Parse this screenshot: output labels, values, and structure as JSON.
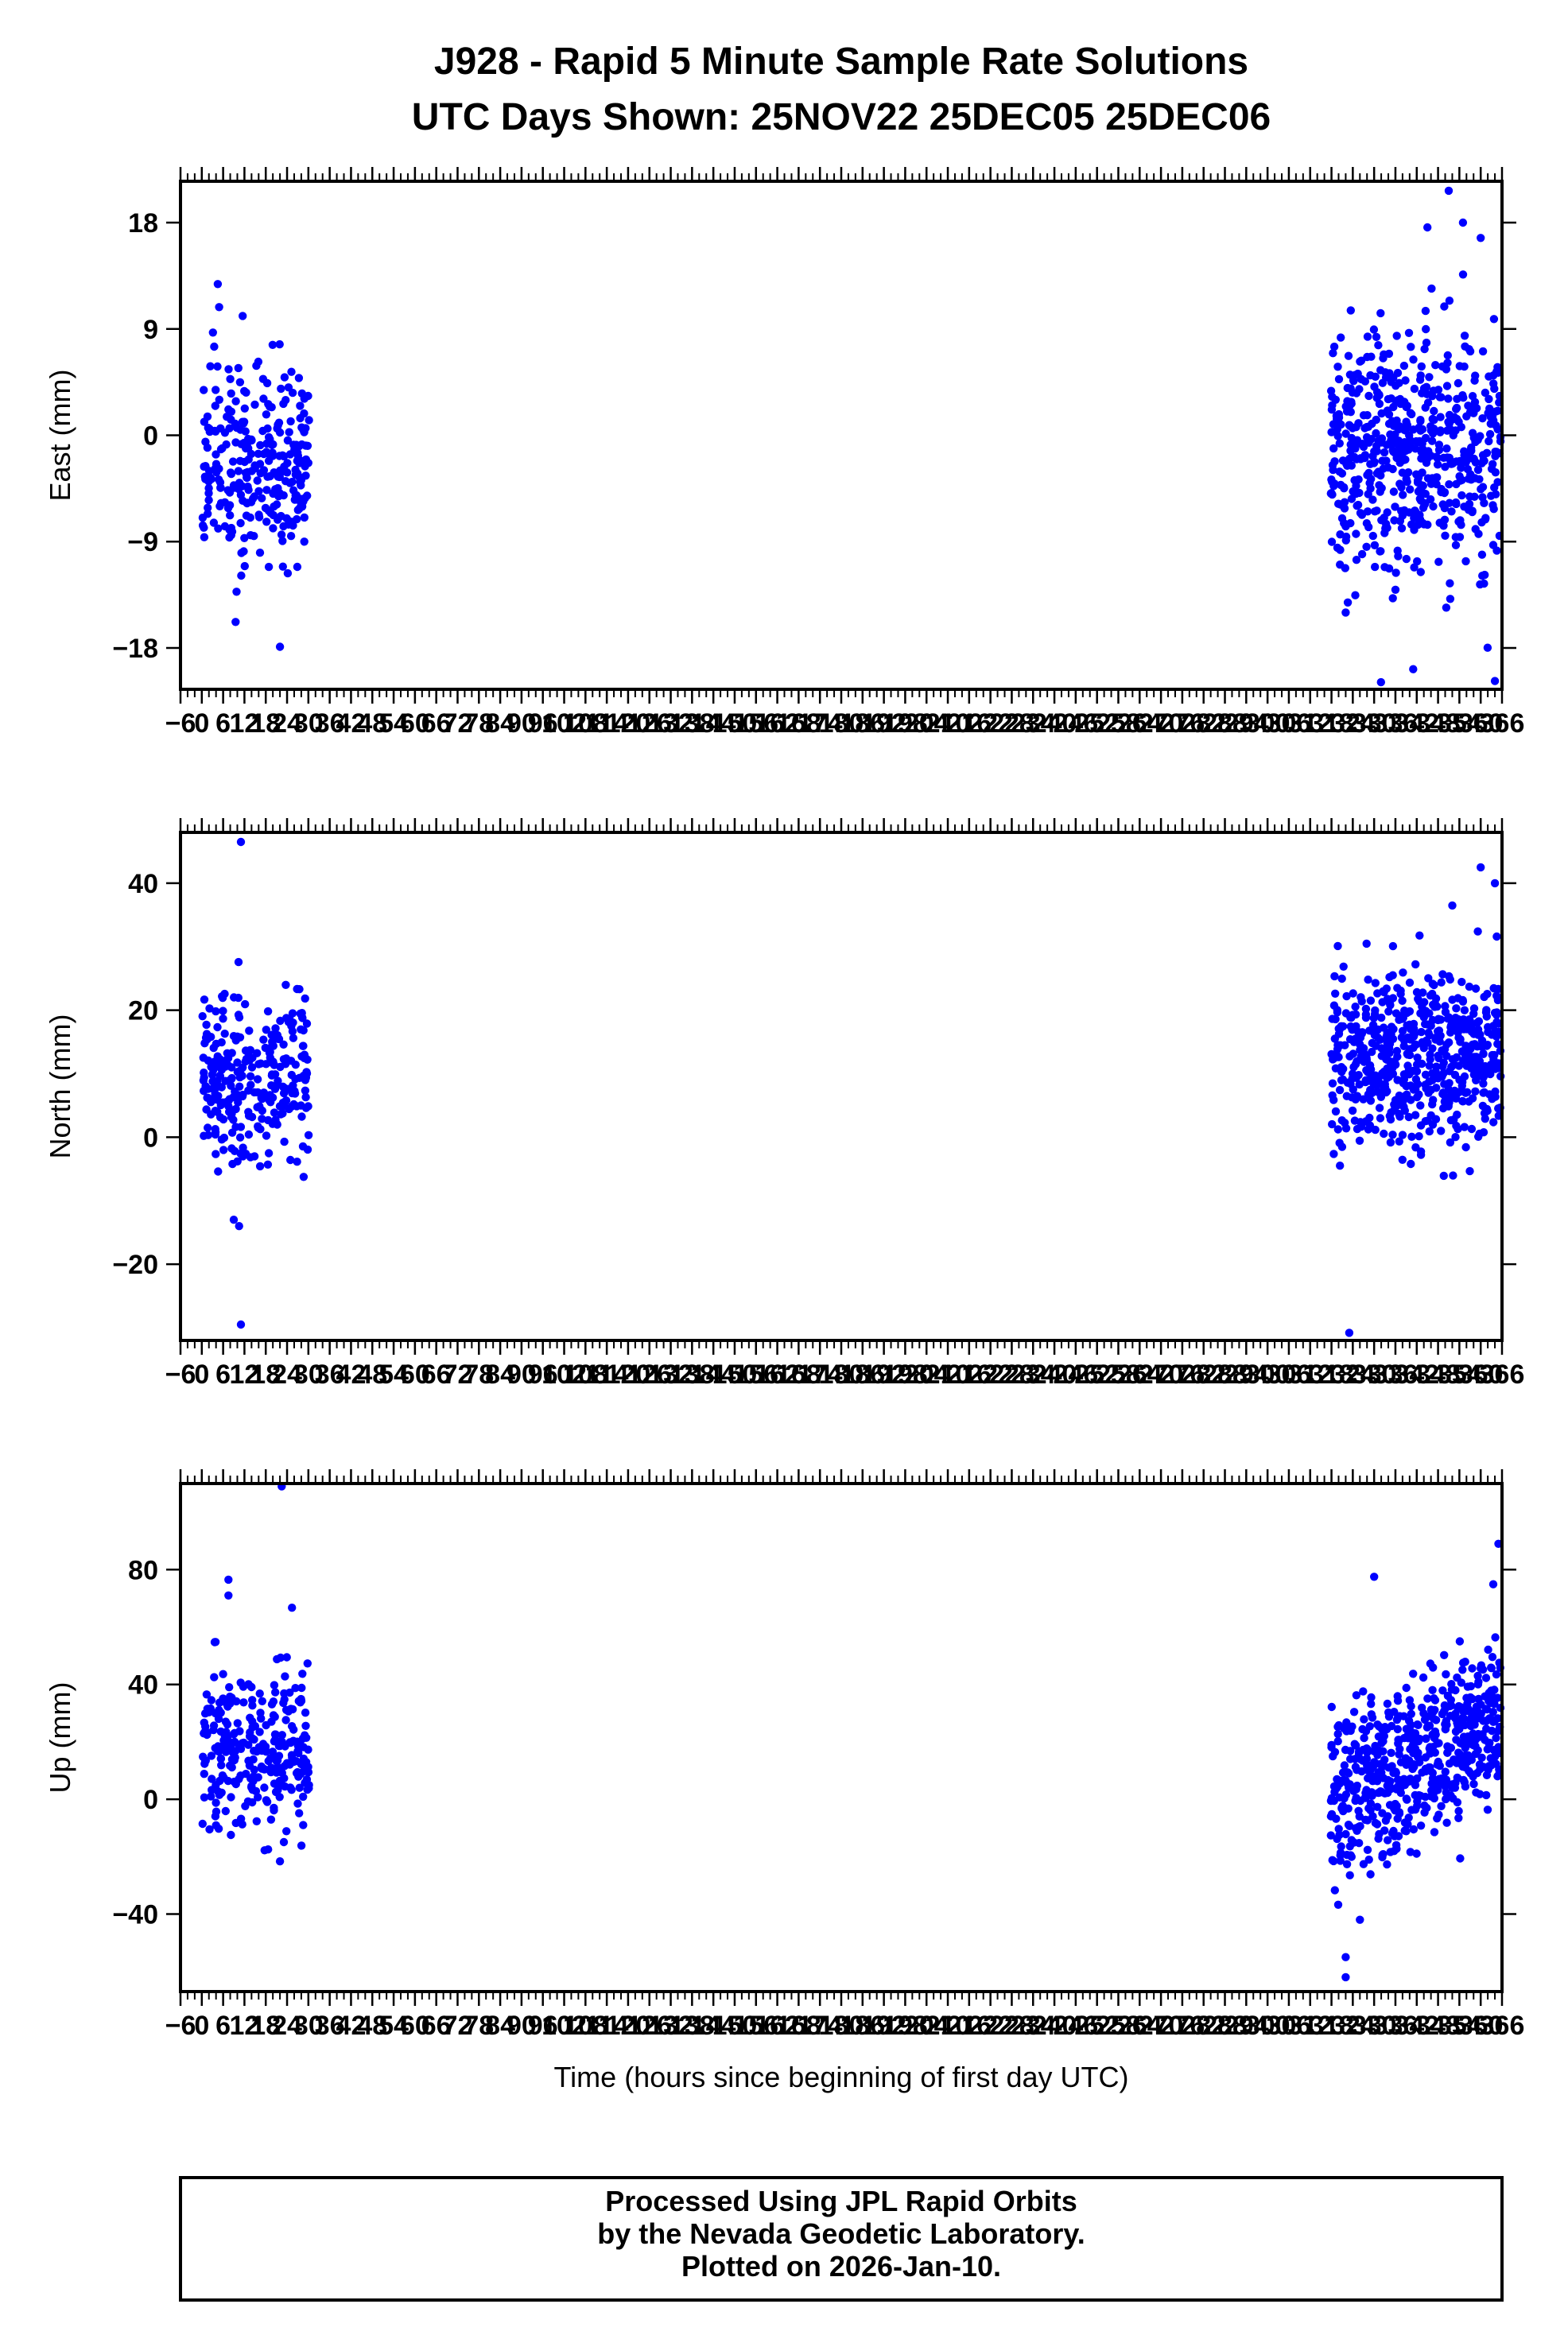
{
  "title_line1": "J928 - Rapid 5 Minute Sample Rate Solutions",
  "title_line2": "UTC Days Shown:  25NOV22 25DEC05 25DEC06",
  "footer": {
    "line1": "Processed Using JPL Rapid Orbits",
    "line2": "by the Nevada Geodetic Laboratory.",
    "line3": "Plotted on 2026-Jan-10."
  },
  "colors": {
    "points": "#0000ff",
    "axes": "#000000",
    "background": "#ffffff"
  },
  "chart_data": [
    {
      "type": "scatter",
      "ylabel": "East (mm)",
      "xlabel": "",
      "xlim": [
        -6,
        366
      ],
      "ylim": [
        -21.5,
        21.5
      ],
      "xticks": [
        -6,
        0,
        6,
        12,
        18,
        24,
        30,
        36,
        42,
        48,
        54,
        60,
        66,
        72,
        78,
        84,
        90,
        96,
        102,
        108,
        114,
        120,
        126,
        132,
        138,
        144,
        150,
        156,
        162,
        168,
        174,
        180,
        186,
        192,
        198,
        204,
        210,
        216,
        222,
        228,
        234,
        240,
        246,
        252,
        258,
        264,
        270,
        276,
        282,
        288,
        294,
        300,
        306,
        312,
        318,
        324,
        330,
        336,
        342,
        348,
        354,
        360,
        366
      ],
      "yticks": [
        -18,
        -9,
        0,
        9,
        18
      ],
      "grid": false,
      "segments": [
        {
          "x_start": 0.2,
          "x_end": 30.2,
          "n": 290,
          "center": -2.5,
          "spread": 4.2,
          "drift": 0
        },
        {
          "x_start": 317.8,
          "x_end": 365.6,
          "n": 580,
          "center": -1.0,
          "spread": 5.0,
          "drift": 0
        }
      ],
      "outliers": [
        [
          4.5,
          12.8
        ],
        [
          11.5,
          10.1
        ],
        [
          9.5,
          -15.8
        ],
        [
          22.0,
          -17.9
        ],
        [
          351.0,
          20.7
        ],
        [
          345.0,
          17.6
        ],
        [
          355.0,
          18.0
        ],
        [
          341.0,
          -19.8
        ],
        [
          364.0,
          -20.8
        ],
        [
          360.0,
          16.7
        ],
        [
          322.0,
          -15.0
        ]
      ]
    },
    {
      "type": "scatter",
      "ylabel": "North (mm)",
      "xlabel": "",
      "xlim": [
        -6,
        366
      ],
      "ylim": [
        -32,
        48
      ],
      "xticks": [
        -6,
        0,
        6,
        12,
        18,
        24,
        30,
        36,
        42,
        48,
        54,
        60,
        66,
        72,
        78,
        84,
        90,
        96,
        102,
        108,
        114,
        120,
        126,
        132,
        138,
        144,
        150,
        156,
        162,
        168,
        174,
        180,
        186,
        192,
        198,
        204,
        210,
        216,
        222,
        228,
        234,
        240,
        246,
        252,
        258,
        264,
        270,
        276,
        282,
        288,
        294,
        300,
        306,
        312,
        318,
        324,
        330,
        336,
        342,
        348,
        354,
        360,
        366
      ],
      "yticks": [
        -20,
        0,
        20,
        40
      ],
      "grid": false,
      "segments": [
        {
          "x_start": 0.2,
          "x_end": 30.2,
          "n": 290,
          "center": 9.0,
          "spread": 6.5,
          "drift": 0
        },
        {
          "x_start": 317.8,
          "x_end": 365.6,
          "n": 580,
          "center": 12.5,
          "spread": 7.0,
          "drift": 0
        }
      ],
      "outliers": [
        [
          11.0,
          46.5
        ],
        [
          11.0,
          -29.5
        ],
        [
          10.5,
          -14.0
        ],
        [
          9.0,
          -13.0
        ],
        [
          323.0,
          -30.8
        ],
        [
          360.0,
          42.5
        ],
        [
          364.0,
          40.0
        ],
        [
          352.0,
          36.5
        ]
      ]
    },
    {
      "type": "scatter",
      "ylabel": "Up (mm)",
      "xlabel": "Time (hours since beginning of first day UTC)",
      "xlim": [
        -6,
        366
      ],
      "ylim": [
        -67,
        110
      ],
      "xticks": [
        -6,
        0,
        6,
        12,
        18,
        24,
        30,
        36,
        42,
        48,
        54,
        60,
        66,
        72,
        78,
        84,
        90,
        96,
        102,
        108,
        114,
        120,
        126,
        132,
        138,
        144,
        150,
        156,
        162,
        168,
        174,
        180,
        186,
        192,
        198,
        204,
        210,
        216,
        222,
        228,
        234,
        240,
        246,
        252,
        258,
        264,
        270,
        276,
        282,
        288,
        294,
        300,
        306,
        312,
        318,
        324,
        330,
        336,
        342,
        348,
        354,
        360,
        366
      ],
      "yticks": [
        -40,
        0,
        40,
        80
      ],
      "grid": false,
      "segments": [
        {
          "x_start": 0.2,
          "x_end": 30.2,
          "n": 290,
          "center": 17.0,
          "spread": 13.0,
          "drift": 0
        },
        {
          "x_start": 317.8,
          "x_end": 365.6,
          "n": 580,
          "center": -2.0,
          "spread": 14.0,
          "drift": 32.0
        }
      ],
      "outliers": [
        [
          22.5,
          109.0
        ],
        [
          7.5,
          76.5
        ],
        [
          7.5,
          71.0
        ],
        [
          365.0,
          89.0
        ],
        [
          330.0,
          77.5
        ],
        [
          322.0,
          -62.0
        ],
        [
          322.0,
          -55.0
        ],
        [
          326.0,
          -42.0
        ]
      ]
    }
  ]
}
